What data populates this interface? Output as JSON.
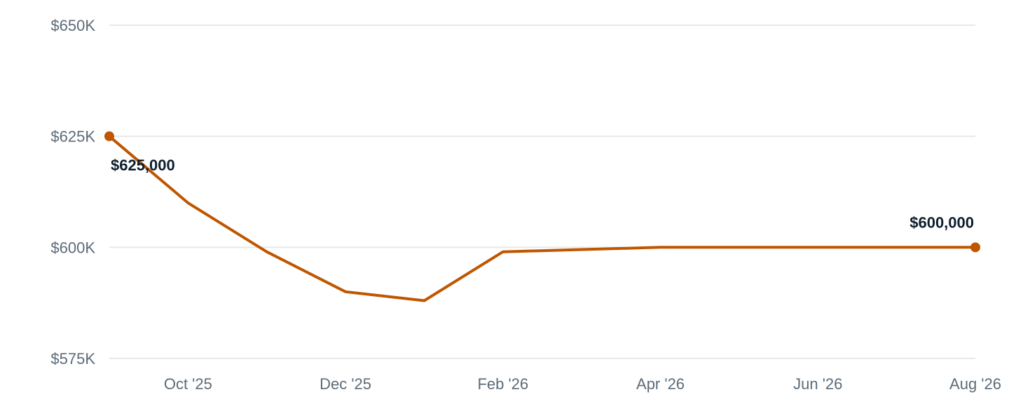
{
  "chart_data": {
    "type": "line",
    "title": "",
    "xlabel": "",
    "ylabel": "",
    "ylim": [
      575000,
      650000
    ],
    "yticks": [
      {
        "value": 650000,
        "label": "$650K"
      },
      {
        "value": 625000,
        "label": "$625K"
      },
      {
        "value": 600000,
        "label": "$600K"
      },
      {
        "value": 575000,
        "label": "$575K"
      }
    ],
    "xlim": [
      "2025-09",
      "2026-08"
    ],
    "xticks": [
      {
        "value": "2025-10",
        "label": "Oct '25"
      },
      {
        "value": "2025-12",
        "label": "Dec '25"
      },
      {
        "value": "2026-02",
        "label": "Feb '26"
      },
      {
        "value": "2026-04",
        "label": "Apr '26"
      },
      {
        "value": "2026-06",
        "label": "Jun '26"
      },
      {
        "value": "2026-08",
        "label": "Aug '26"
      }
    ],
    "series": [
      {
        "color": "#bf5600",
        "points": [
          {
            "x": "2025-09",
            "y": 625000
          },
          {
            "x": "2025-10",
            "y": 610000
          },
          {
            "x": "2025-11",
            "y": 599000
          },
          {
            "x": "2025-12",
            "y": 590000
          },
          {
            "x": "2026-01",
            "y": 588000
          },
          {
            "x": "2026-02",
            "y": 599000
          },
          {
            "x": "2026-03",
            "y": 599500
          },
          {
            "x": "2026-04",
            "y": 600000
          },
          {
            "x": "2026-05",
            "y": 600000
          },
          {
            "x": "2026-06",
            "y": 600000
          },
          {
            "x": "2026-07",
            "y": 600000
          },
          {
            "x": "2026-08",
            "y": 600000
          }
        ]
      }
    ],
    "annotations": [
      {
        "point": "start",
        "text": "$625,000"
      },
      {
        "point": "end",
        "text": "$600,000"
      }
    ],
    "grid": true,
    "legend": "none"
  }
}
